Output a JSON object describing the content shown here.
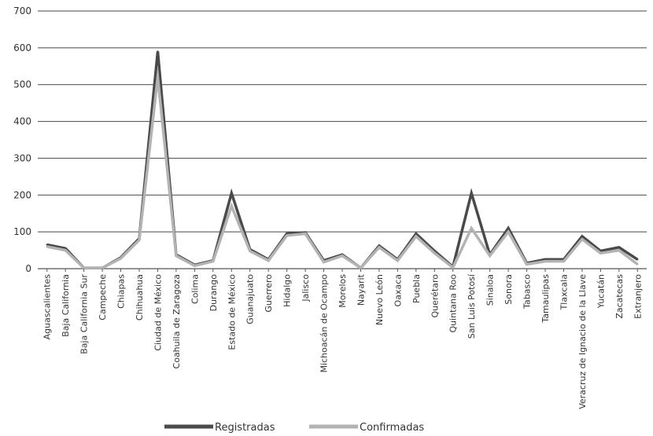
{
  "chart_data": {
    "type": "line",
    "title": "",
    "xlabel": "",
    "ylabel": "",
    "ylim": [
      0,
      700
    ],
    "yticks": [
      0,
      100,
      200,
      300,
      400,
      500,
      600,
      700
    ],
    "grid": true,
    "legend_position": "bottom",
    "categories": [
      "Aguascalientes",
      "Baja California",
      "Baja California Sur",
      "Campeche",
      "Chiapas",
      "Chihuahua",
      "Ciudad de México",
      "Coahuila de Zaragoza",
      "Colima",
      "Durango",
      "Estado de México",
      "Guanajuato",
      "Guerrero",
      "Hidalgo",
      "Jalisco",
      "Michoacán de Ocampo",
      "Morelos",
      "Nayarit",
      "Nuevo León",
      "Oaxaca",
      "Puebla",
      "Querétaro",
      "Quintana Roo",
      "San Luis Potosí",
      "Sinaloa",
      "Sonora",
      "Tabasco",
      "Tamaulipas",
      "Tlaxcala",
      "Veracruz de Ignacio de la Llave",
      "Yucatán",
      "Zacatecas",
      "Extranjero"
    ],
    "series": [
      {
        "name": "Registradas",
        "color": "#4a4a4a",
        "values": [
          65,
          55,
          2,
          2,
          30,
          82,
          590,
          38,
          10,
          22,
          205,
          52,
          25,
          95,
          98,
          22,
          38,
          2,
          62,
          25,
          95,
          48,
          5,
          205,
          38,
          110,
          15,
          25,
          25,
          88,
          48,
          58,
          25
        ]
      },
      {
        "name": "Confirmadas",
        "color": "#b3b3b3",
        "values": [
          60,
          50,
          2,
          2,
          28,
          78,
          520,
          35,
          8,
          20,
          170,
          48,
          22,
          90,
          95,
          18,
          35,
          2,
          58,
          22,
          88,
          42,
          3,
          110,
          35,
          100,
          12,
          20,
          20,
          80,
          42,
          50,
          12
        ]
      }
    ]
  }
}
